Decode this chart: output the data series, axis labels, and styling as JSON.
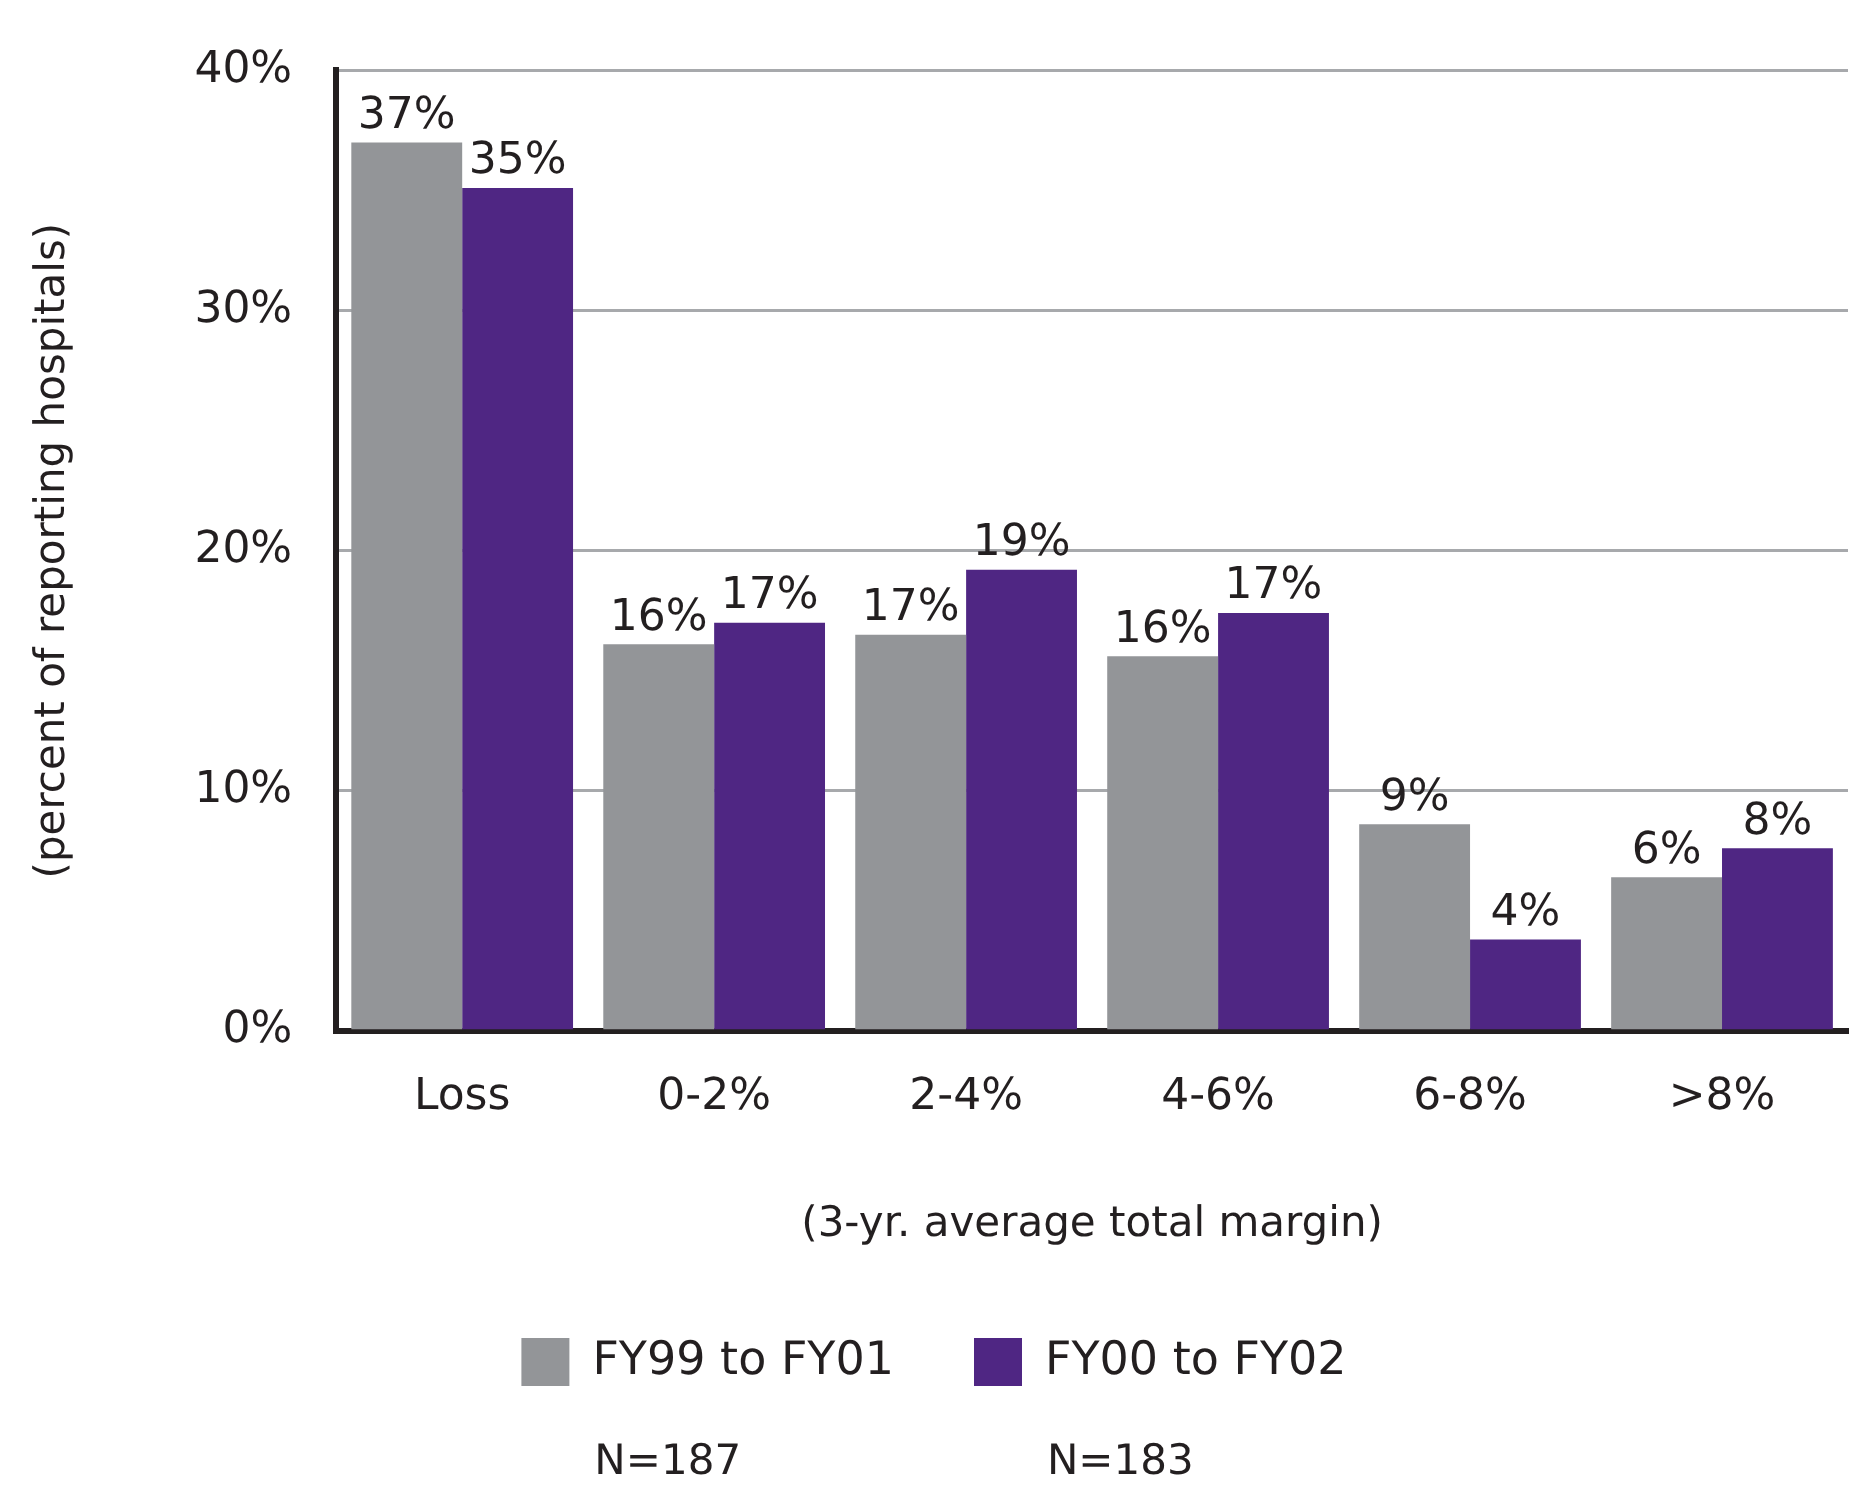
{
  "chart_data": {
    "type": "bar",
    "xlabel": "(3-yr. average total margin)",
    "ylabel": "(percent of reporting hospitals)",
    "categories": [
      "Loss",
      "0-2%",
      "2-4%",
      "4-6%",
      "6-8%",
      ">8%"
    ],
    "series": [
      {
        "name": "FY99 to FY01",
        "color": "#939598",
        "values": [
          37.0,
          16.1,
          16.5,
          15.6,
          8.6,
          6.4
        ],
        "value_labels": [
          "37%",
          "16%",
          "17%",
          "16%",
          "9%",
          "6%"
        ]
      },
      {
        "name": "FY00 to FY02",
        "color": "#4f2683",
        "values": [
          35.1,
          17.0,
          19.2,
          17.4,
          3.8,
          7.6
        ],
        "value_labels": [
          "35%",
          "17%",
          "19%",
          "17%",
          "4%",
          "8%"
        ]
      }
    ],
    "ylim": [
      0,
      40
    ],
    "yticks": [
      {
        "value": 0,
        "label": "0%"
      },
      {
        "value": 10,
        "label": "10%"
      },
      {
        "value": 20,
        "label": "20%"
      },
      {
        "value": 30,
        "label": "30%"
      },
      {
        "value": 40,
        "label": "40%"
      }
    ],
    "grid": "y",
    "legend": "bottom",
    "annotations": [
      "N=187",
      "N=183"
    ]
  }
}
